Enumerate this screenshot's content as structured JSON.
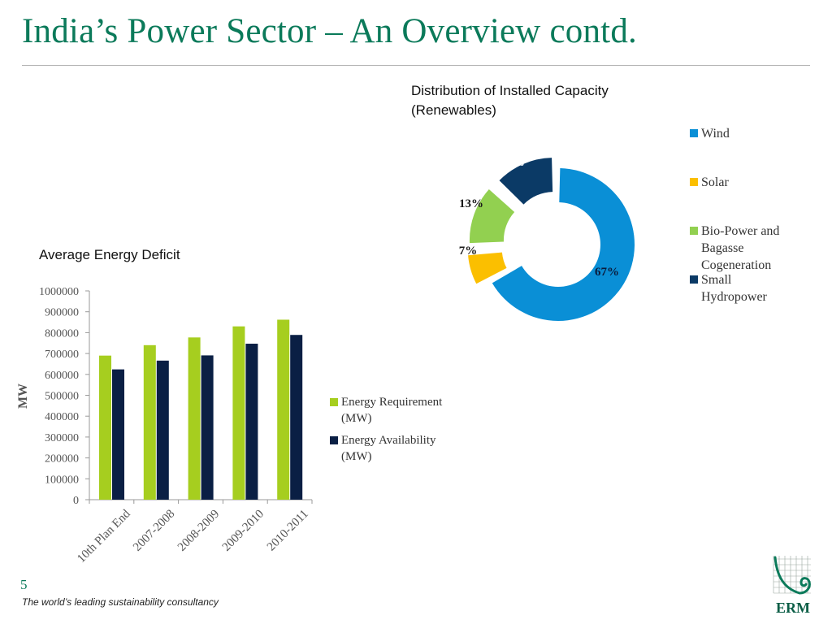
{
  "slide": {
    "title": "India’s Power Sector – An Overview contd.",
    "page_number": "5",
    "footer": "The world’s leading sustainability consultancy",
    "logo_text": "ERM"
  },
  "colors": {
    "title": "#0b7a5a",
    "wind": "#0a8fd6",
    "solar": "#fbbf00",
    "bio": "#92d050",
    "hydro": "#0b3a66",
    "requirement": "#a6ce1f",
    "availability": "#0a1f44"
  },
  "donut": {
    "title_line1": "Distribution of Installed Capacity",
    "title_line2": "(Renewables)",
    "legend": [
      {
        "label": "Wind",
        "color": "#0a8fd6"
      },
      {
        "label": "Solar",
        "color": "#fbbf00"
      },
      {
        "label": "Bio-Power and\nBagasse\nCogeneration",
        "color": "#92d050"
      },
      {
        "label": "Small\nHydropower",
        "color": "#0b3a66"
      }
    ]
  },
  "bar": {
    "title": "Average Energy Deficit",
    "legend": [
      {
        "label": "Energy Requirement\n(MW)",
        "color": "#a6ce1f"
      },
      {
        "label": "Energy Availability\n(MW)",
        "color": "#0a1f44"
      }
    ]
  },
  "chart_data": [
    {
      "type": "pie",
      "title": "Distribution of Installed Capacity (Renewables)",
      "categories": [
        "Wind",
        "Solar",
        "Bio-Power and Bagasse Cogeneration",
        "Small Hydropower"
      ],
      "values": [
        67,
        7,
        13,
        13
      ],
      "data_labels": [
        "67%",
        "7%",
        "13%",
        "13%"
      ],
      "legend_position": "right"
    },
    {
      "type": "bar",
      "title": "Average Energy Deficit",
      "categories": [
        "10th Plan End",
        "2007-2008",
        "2008-2009",
        "2009-2010",
        "2010-2011"
      ],
      "series": [
        {
          "name": "Energy Requirement (MW)",
          "values": [
            690000,
            740000,
            777000,
            830000,
            862000
          ]
        },
        {
          "name": "Energy Availability (MW)",
          "values": [
            624000,
            666000,
            691000,
            747000,
            789000
          ]
        }
      ],
      "xlabel": "",
      "ylabel": "MW",
      "ylim": [
        0,
        1000000
      ],
      "yticks": [
        "0",
        "100000",
        "200000",
        "300000",
        "400000",
        "500000",
        "600000",
        "700000",
        "800000",
        "900000",
        "1000000"
      ],
      "grid": false,
      "legend_position": "right"
    }
  ]
}
